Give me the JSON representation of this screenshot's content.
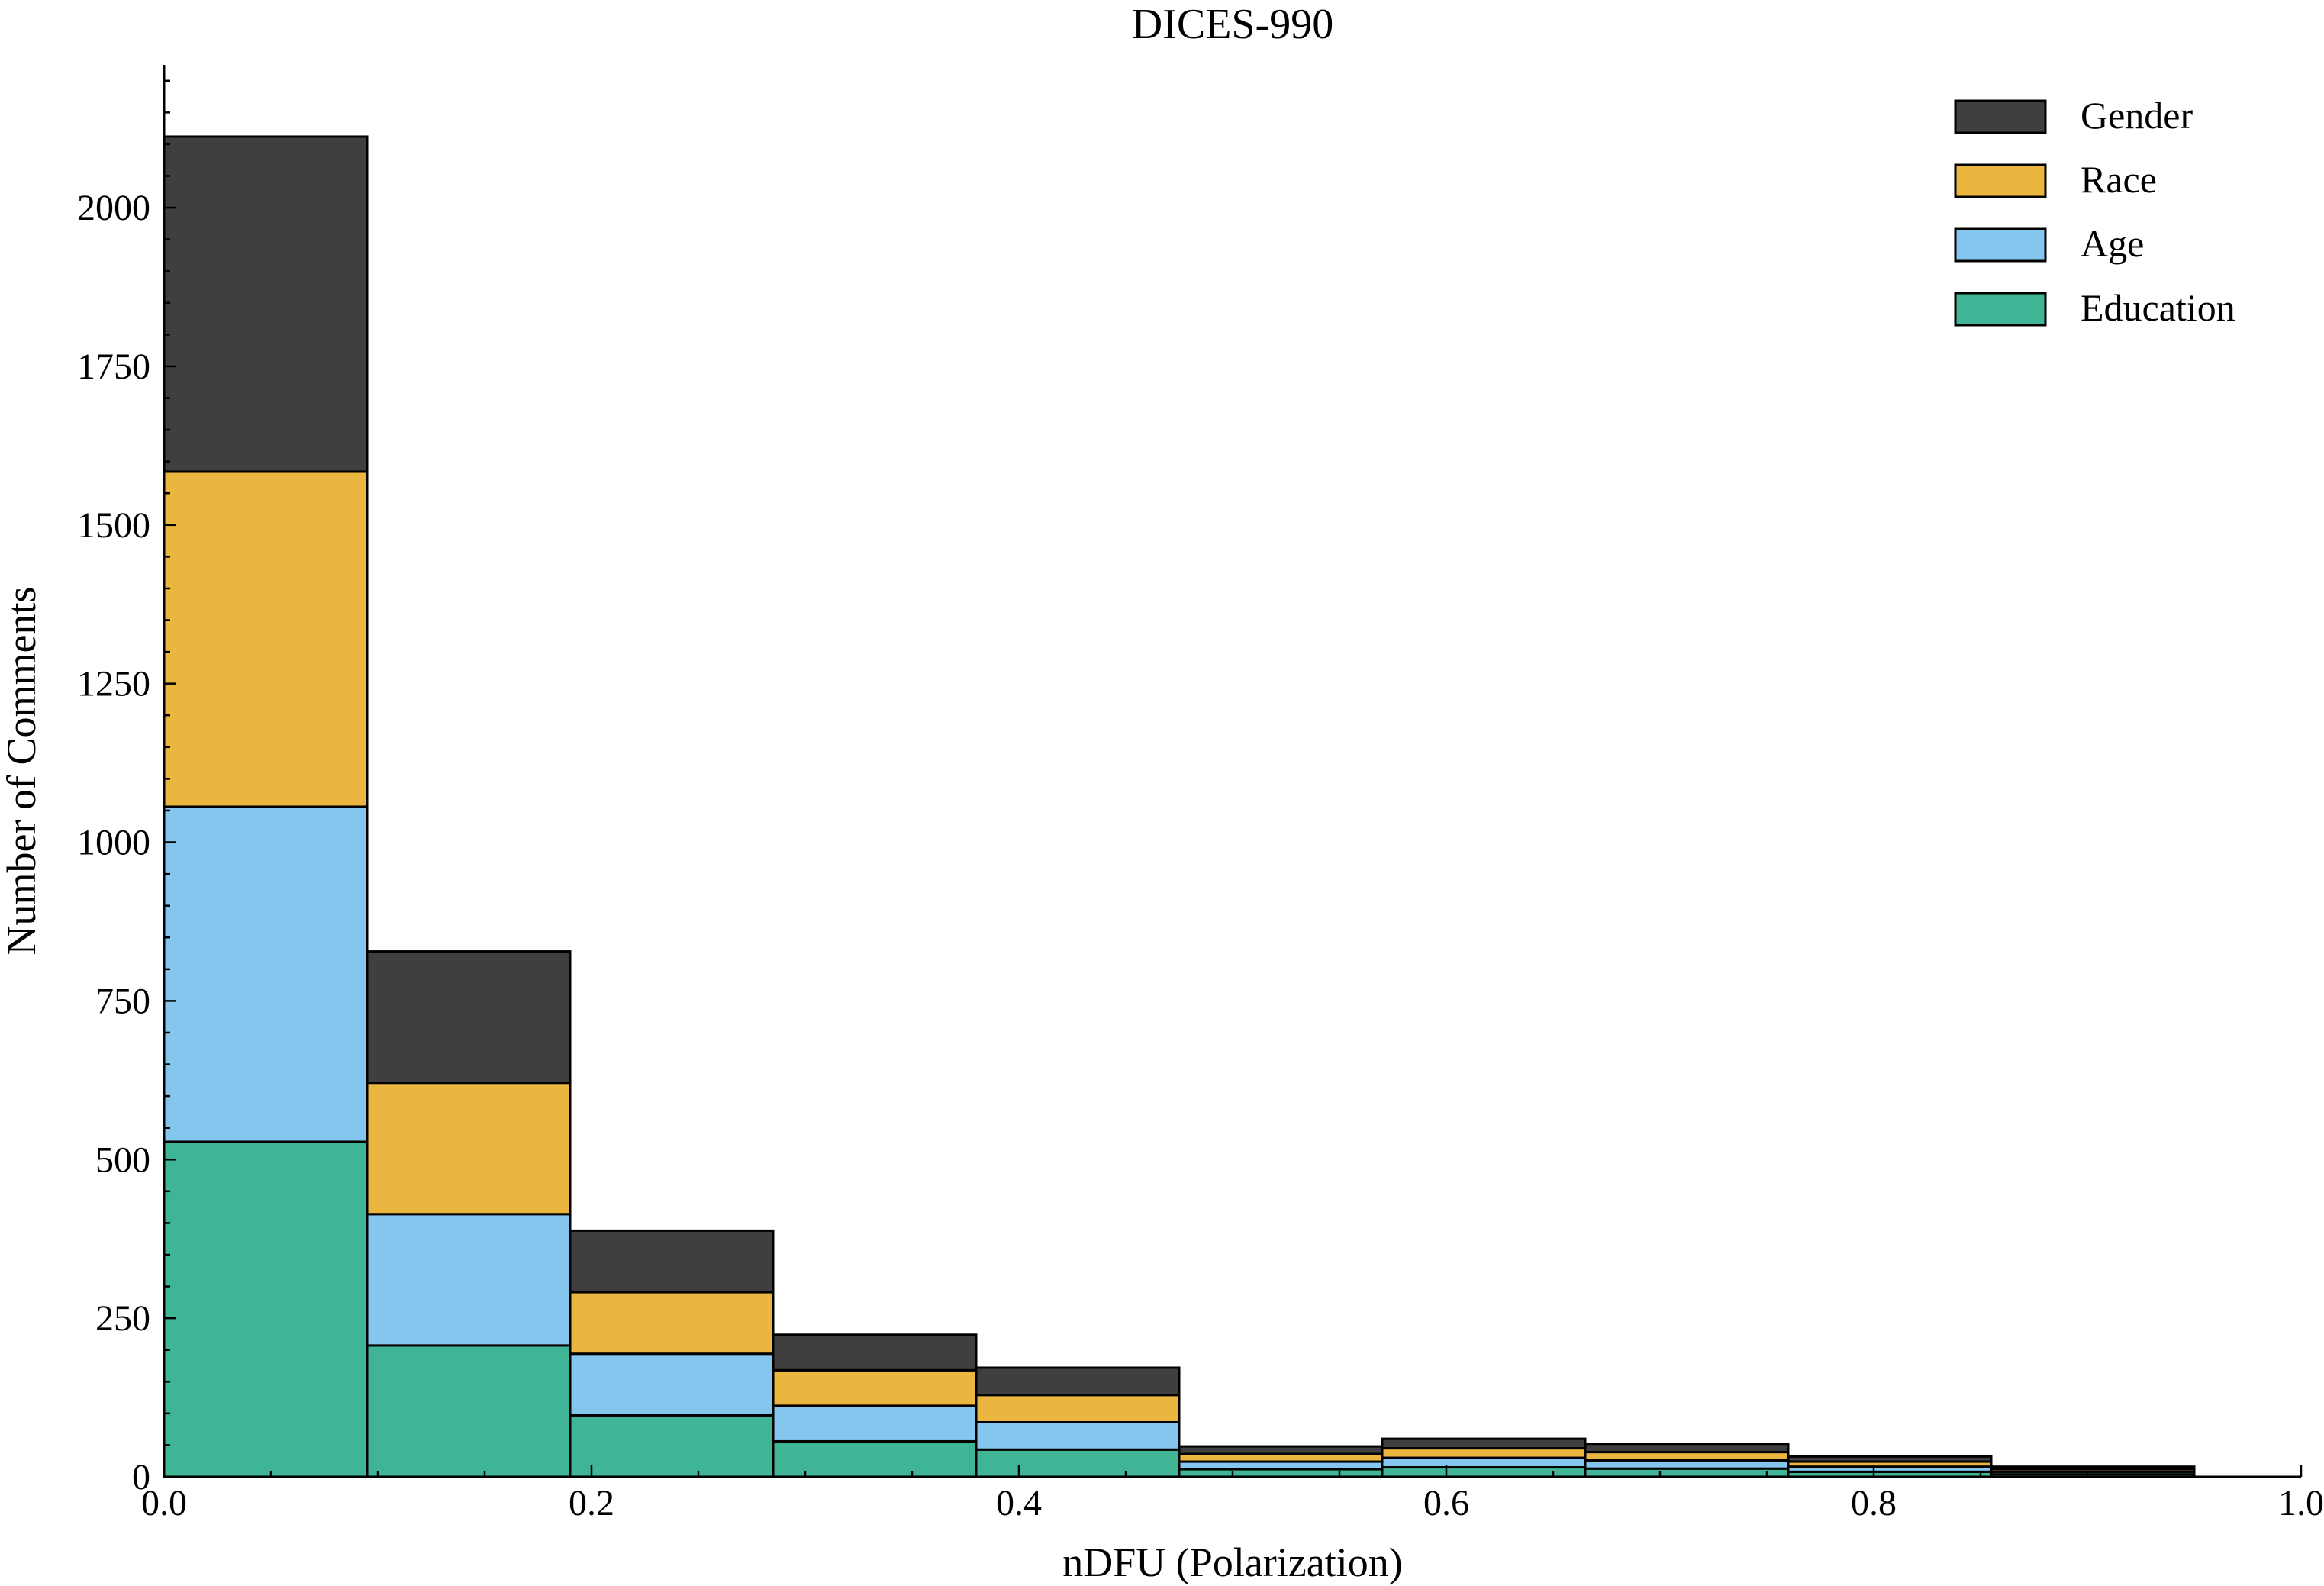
{
  "chart_data": {
    "type": "bar",
    "stacked": true,
    "title": "DICES-990",
    "xlabel": "nDFU (Polarization)",
    "ylabel": "Number of Comments",
    "xlim": [
      0.0,
      1.0
    ],
    "ylim": [
      0,
      2225
    ],
    "xticks": [
      0.0,
      0.2,
      0.4,
      0.6,
      0.8,
      1.0
    ],
    "xtick_labels": [
      "0.0",
      "0.2",
      "0.4",
      "0.6",
      "0.8",
      "1.0"
    ],
    "yticks": [
      0,
      250,
      500,
      750,
      1000,
      1250,
      1500,
      1750,
      2000
    ],
    "ytick_labels": [
      "0",
      "250",
      "500",
      "750",
      "1000",
      "1250",
      "1500",
      "1750",
      "2000"
    ],
    "bin_edges": [
      0.0,
      0.095,
      0.19,
      0.285,
      0.38,
      0.475,
      0.57,
      0.665,
      0.76,
      0.855,
      0.95
    ],
    "series": [
      {
        "name": "Education",
        "color": "#3fb595",
        "values": [
          528,
          207,
          97,
          56,
          43,
          12,
          15,
          13,
          8,
          4
        ]
      },
      {
        "name": "Age",
        "color": "#85c6ef",
        "values": [
          528,
          207,
          97,
          56,
          43,
          12,
          15,
          13,
          8,
          4
        ]
      },
      {
        "name": "Race",
        "color": "#ebb640",
        "values": [
          528,
          207,
          97,
          56,
          43,
          12,
          15,
          13,
          8,
          4
        ]
      },
      {
        "name": "Gender",
        "color": "#3f3f3f",
        "values": [
          528,
          207,
          97,
          56,
          43,
          12,
          15,
          13,
          8,
          4
        ]
      }
    ],
    "legend_order": [
      "Gender",
      "Race",
      "Age",
      "Education"
    ],
    "legend_position": "top-right",
    "grid": false
  }
}
